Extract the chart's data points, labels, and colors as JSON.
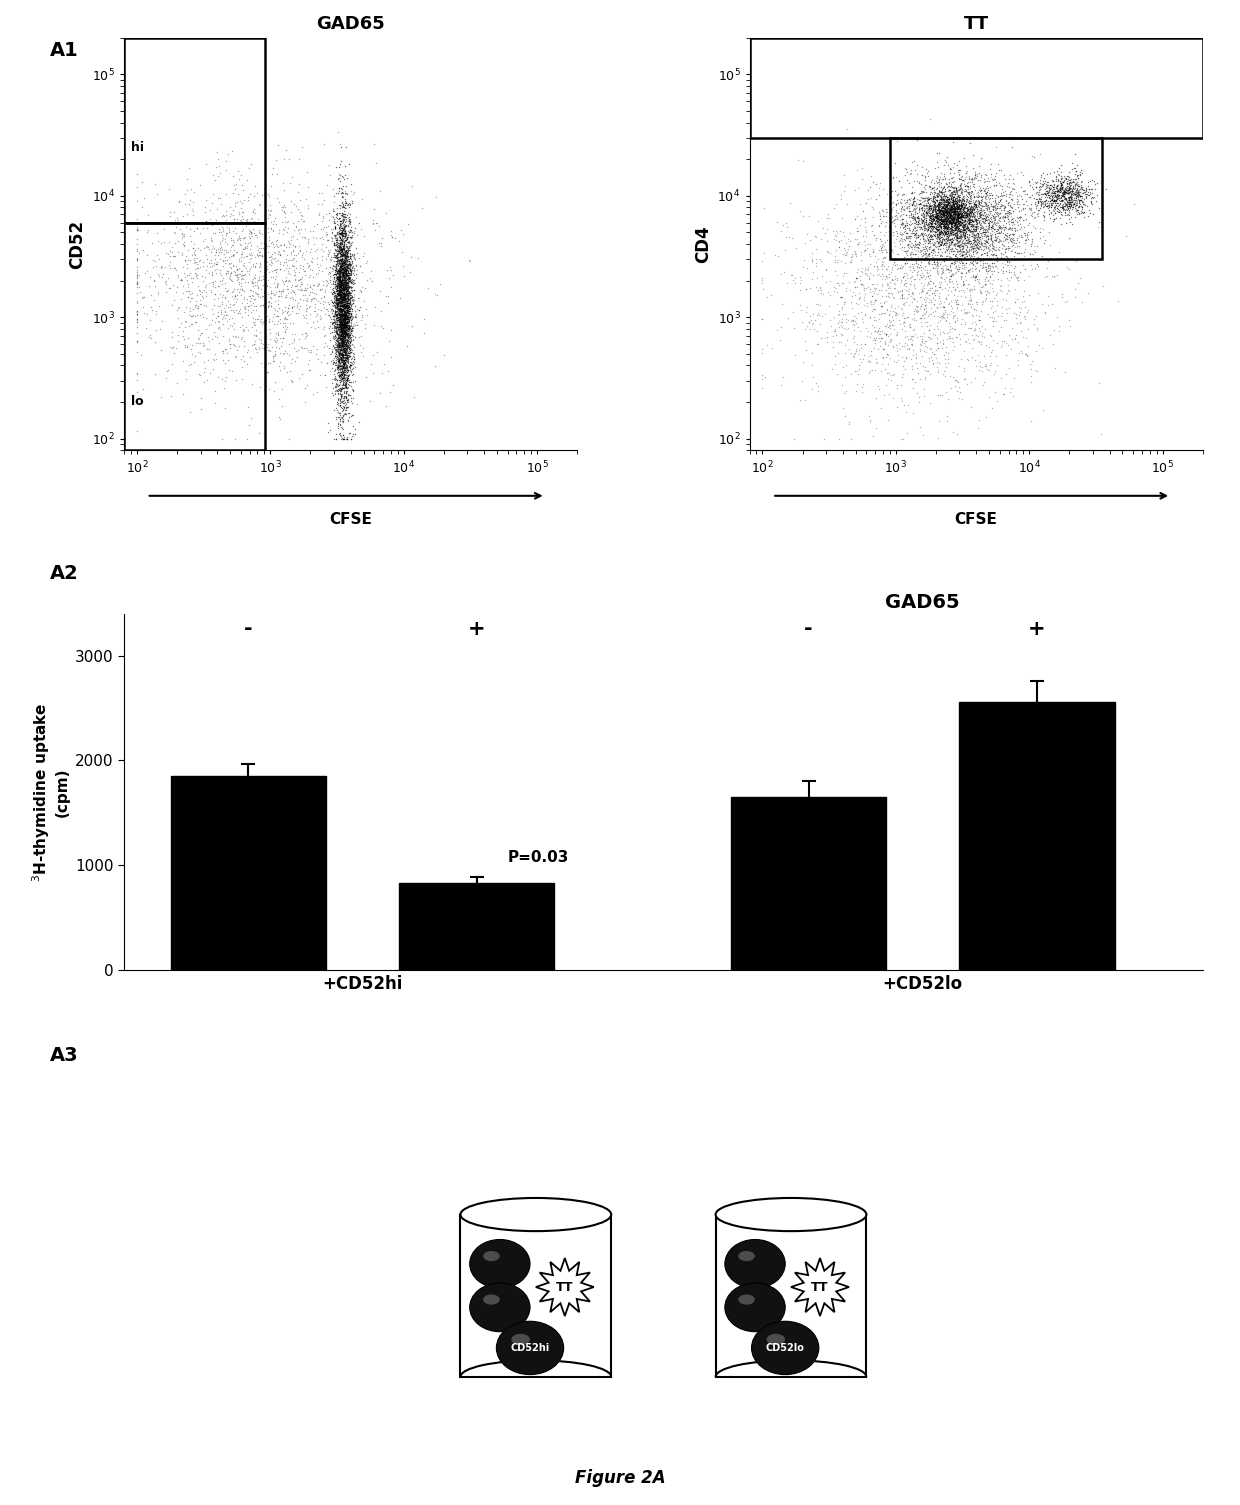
{
  "fig_width": 12.4,
  "fig_height": 15.05,
  "panel_A1_left_title": "GAD65",
  "panel_A1_right_title": "TT",
  "panel_A1_left_ylabel": "CD52",
  "panel_A1_right_ylabel": "CD4",
  "panel_A1_xlabel": "CFSE",
  "panel_A2_title": "GAD65",
  "panel_A2_ylabel": "$^{3}$H-thymidine uptake\n(cpm)",
  "panel_A2_bar_values": [
    1850,
    830,
    1650,
    2560
  ],
  "panel_A2_bar_errors": [
    120,
    60,
    150,
    200
  ],
  "panel_A2_bar_colors": [
    "#000000",
    "#000000",
    "#000000",
    "#000000"
  ],
  "panel_A2_xtick_labels": [
    "+CD52hi",
    "+CD52lo"
  ],
  "panel_A2_group_labels": [
    "-",
    "+",
    "-",
    "+"
  ],
  "panel_A2_pvalue": "P=0.03",
  "panel_A2_ylim": [
    0,
    3400
  ],
  "panel_A2_yticks": [
    0,
    1000,
    2000,
    3000
  ],
  "panel_A3_left_label": "CD52hi",
  "panel_A3_right_label": "CD52lo",
  "figure_label": "Figure 2A",
  "panel_labels": [
    "A1",
    "A2",
    "A3"
  ]
}
